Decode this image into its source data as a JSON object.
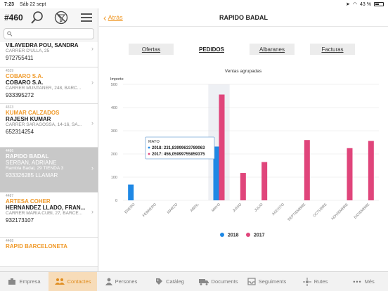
{
  "status": {
    "time": "7:23",
    "date": "Sáb 22 sept",
    "battery": "43 %"
  },
  "left": {
    "counter": "#460",
    "search_placeholder": "",
    "items": [
      {
        "code": "",
        "company": "",
        "person": "VILAVEDRA POU, SANDRA",
        "address": "CARRER D'ULLA, 25",
        "phone": "972755411"
      },
      {
        "code": "4539",
        "company": "COBARO S.A.",
        "person": "COBARO S.A.",
        "address": "CARRER MUNTANER, 248, BARC...",
        "phone": "933395272"
      },
      {
        "code": "4313",
        "company": "KUMAR CALZADOS",
        "person": "RAJESH KUMAR",
        "address": "CARRER SARAGOSSA, 14-16, SA...",
        "phone": "652314254"
      },
      {
        "code": "4486",
        "company": "RAPIDO BADAL",
        "person": "SERBAN, ADRIANE",
        "address": "Rambla Badal, 29 TIENDA 3",
        "phone": "933326285 LLAMAR"
      },
      {
        "code": "4487",
        "company": "ARTESA COHER",
        "person": "HERNANDEZ LLADO, FRAN...",
        "address": "CARRER MARIA CUBI, 27, BARCE...",
        "phone": "932173107"
      },
      {
        "code": "4468",
        "company": "RAPID BARCELONETA",
        "person": "",
        "address": "",
        "phone": ""
      }
    ]
  },
  "nav": {
    "back_label": "Atrás",
    "title": "RAPIDO BADAL"
  },
  "segments": [
    "Ofertas",
    "PEDIDOS",
    "Albaranes",
    "Facturas"
  ],
  "active_segment": "PEDIDOS",
  "chart_data": {
    "type": "bar",
    "title": "Ventas agrupadas",
    "ylabel": "Importe",
    "ylim": [
      0,
      500
    ],
    "yticks": [
      0,
      100,
      200,
      300,
      400,
      500
    ],
    "categories": [
      "ENERO",
      "FEBRERO",
      "MARZO",
      "ABRIL",
      "MAYO",
      "JUNIO",
      "JULIO",
      "AGOSTO",
      "SEPTIEMBRE",
      "OCTUBRE",
      "NOVIEMBRE",
      "DICIEMBRE"
    ],
    "series": [
      {
        "name": "2018",
        "color": "#1e88e5",
        "values": [
          68,
          0,
          0,
          0,
          231.84,
          0,
          0,
          0,
          0,
          0,
          0,
          0
        ]
      },
      {
        "name": "2017",
        "color": "#e0457b",
        "values": [
          0,
          0,
          0,
          0,
          456.06,
          118,
          165,
          0,
          260,
          0,
          225,
          256
        ]
      }
    ],
    "highlighted_category": "MAYO",
    "tooltip": {
      "title": "MAYO",
      "lines": [
        "2018: 231,83999633789063",
        "2017: 456,05999755859375"
      ]
    },
    "legend_position": "bottom",
    "grid": true
  },
  "tabs": [
    {
      "label": "Empresa",
      "icon": "building-icon"
    },
    {
      "label": "Contactes",
      "icon": "people-icon",
      "active": true
    },
    {
      "label": "Persones",
      "icon": "person-icon"
    },
    {
      "label": "Catàleg",
      "icon": "tag-icon"
    },
    {
      "label": "Documents",
      "icon": "truck-icon"
    },
    {
      "label": "Seguiments",
      "icon": "inbox-icon"
    },
    {
      "label": "Rutes",
      "icon": "route-icon"
    },
    {
      "label": "Més",
      "icon": "more-icon"
    }
  ]
}
